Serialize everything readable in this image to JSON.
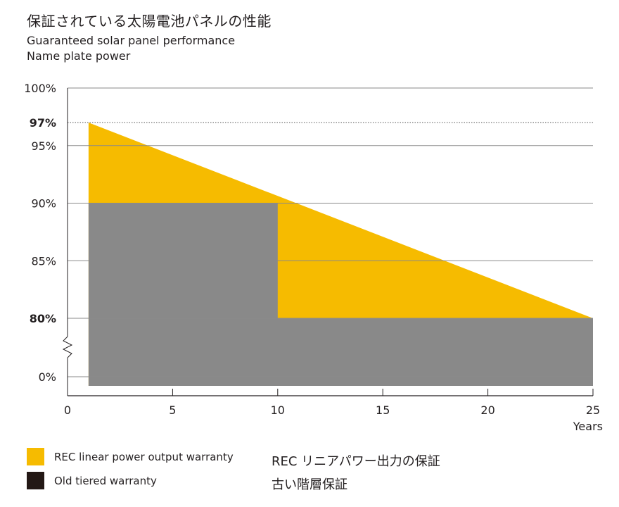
{
  "title": "保証されている太陽電池パネルの性能",
  "subtitle_en": "Guaranteed solar panel performance",
  "subtitle_en2": "Name plate power",
  "colors": {
    "linear": "#f6bb00",
    "tiered": "#898989",
    "legend_tiered_swatch": "#231815",
    "grid": "#8a8a8a",
    "axis": "#231f20"
  },
  "chart_data": {
    "type": "area",
    "xlabel": "Years",
    "ylabel": "",
    "xlim": [
      0,
      25
    ],
    "ylim": [
      "0%",
      "100%"
    ],
    "y_axis_break": "between 0% and 80%",
    "x_ticks": [
      "0",
      "5",
      "10",
      "15",
      "20",
      "25"
    ],
    "y_ticks": [
      "100%",
      "97%",
      "95%",
      "90%",
      "85%",
      "80%",
      "0%"
    ],
    "y_ticks_bold": [
      "97%",
      "80%"
    ],
    "grid": true,
    "reference_line": {
      "y": 97,
      "style": "dotted"
    },
    "series": [
      {
        "name": "REC linear power output warranty",
        "color": "#f6bb00",
        "x": [
          1,
          25
        ],
        "y": [
          97,
          80
        ]
      },
      {
        "name": "Old tiered warranty",
        "color": "#898989",
        "x": [
          1,
          10,
          10,
          25
        ],
        "y": [
          90,
          90,
          80,
          80
        ]
      }
    ]
  },
  "legend": {
    "items": [
      {
        "label": "REC linear power output warranty",
        "color": "#f6bb00"
      },
      {
        "label": "Old tiered warranty",
        "color": "#231815"
      }
    ],
    "jp_labels": [
      "REC リニアパワー出力の保証",
      "古い階層保証"
    ]
  }
}
